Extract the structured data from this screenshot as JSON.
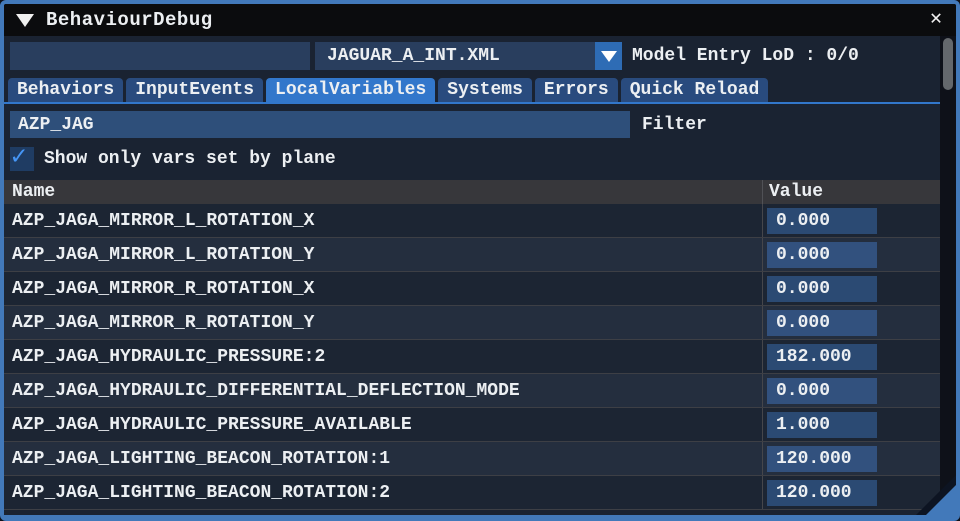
{
  "window": {
    "title": "BehaviourDebug",
    "close_glyph": "✕"
  },
  "toolbar": {
    "search_value": "",
    "model_file": "JAGUAR_A_INT.XML",
    "model_entry_lod": "Model Entry LoD : 0/0"
  },
  "tabs": [
    {
      "label": "Behaviors",
      "active": false
    },
    {
      "label": "InputEvents",
      "active": false
    },
    {
      "label": "LocalVariables",
      "active": true
    },
    {
      "label": "Systems",
      "active": false
    },
    {
      "label": "Errors",
      "active": false
    },
    {
      "label": "Quick Reload",
      "active": false
    }
  ],
  "filter": {
    "value": "AZP_JAG",
    "label": "Filter"
  },
  "checkbox": {
    "checked": true,
    "glyph": "✓",
    "label": "Show only vars set by plane"
  },
  "table": {
    "columns": [
      "Name",
      "Value"
    ],
    "rows": [
      {
        "name": "AZP_JAGA_MIRROR_L_ROTATION_X",
        "value": "0.000"
      },
      {
        "name": "AZP_JAGA_MIRROR_L_ROTATION_Y",
        "value": "0.000"
      },
      {
        "name": "AZP_JAGA_MIRROR_R_ROTATION_X",
        "value": "0.000"
      },
      {
        "name": "AZP_JAGA_MIRROR_R_ROTATION_Y",
        "value": "0.000"
      },
      {
        "name": "AZP_JAGA_HYDRAULIC_PRESSURE:2",
        "value": "182.000"
      },
      {
        "name": "AZP_JAGA_HYDRAULIC_DIFFERENTIAL_DEFLECTION_MODE",
        "value": "0.000"
      },
      {
        "name": "AZP_JAGA_HYDRAULIC_PRESSURE_AVAILABLE",
        "value": "1.000"
      },
      {
        "name": "AZP_JAGA_LIGHTING_BEACON_ROTATION:1",
        "value": "120.000"
      },
      {
        "name": "AZP_JAGA_LIGHTING_BEACON_ROTATION:2",
        "value": "120.000"
      }
    ]
  },
  "colors": {
    "frame_blue": "#4279ba",
    "accent_blue": "#3277cb",
    "input_blue": "#293e5e",
    "value_input_blue": "#2b4a73",
    "check_blue": "#4596f7",
    "titlebar_black": "#0b0c0e",
    "body_navy": "#1a2332",
    "header_gray": "#37373b"
  }
}
